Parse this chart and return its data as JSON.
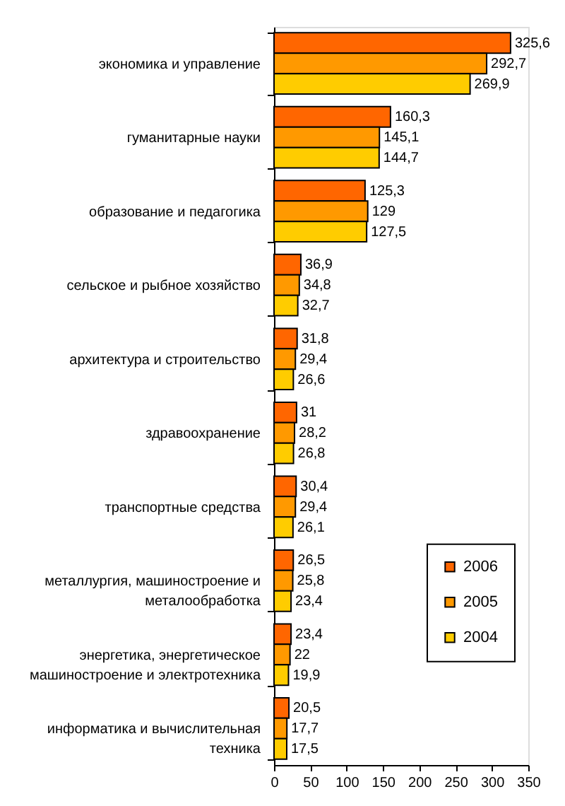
{
  "chart_data": {
    "type": "bar",
    "orientation": "horizontal",
    "categories": [
      "экономика и управление",
      "гуманитарные науки",
      "образование и педагогика",
      "сельское и рыбное хозяйство",
      "архитектура и строительство",
      "здравоохранение",
      "транспортные средства",
      "металлургия, машиностроение и\nметалообработка",
      "энергетика, энергетическое\nмашиностроение и электротехника",
      "информатика и вычислительная\nтехника"
    ],
    "series": [
      {
        "name": "2006",
        "color": "#ff6600",
        "values": [
          325.6,
          160.3,
          125.3,
          36.9,
          31.8,
          31,
          30.4,
          26.5,
          23.4,
          20.5
        ],
        "value_labels": [
          "325,6",
          "160,3",
          "125,3",
          "36,9",
          "31,8",
          "31",
          "30,4",
          "26,5",
          "23,4",
          "20,5"
        ]
      },
      {
        "name": "2005",
        "color": "#ff9900",
        "values": [
          292.7,
          145.1,
          129,
          34.8,
          29.4,
          28.2,
          29.4,
          25.8,
          22,
          17.7
        ],
        "value_labels": [
          "292,7",
          "145,1",
          "129",
          "34,8",
          "29,4",
          "28,2",
          "29,4",
          "25,8",
          "22",
          "17,7"
        ]
      },
      {
        "name": "2004",
        "color": "#ffcc00",
        "values": [
          269.9,
          144.7,
          127.5,
          32.7,
          26.6,
          26.8,
          26.1,
          23.4,
          19.9,
          17.5
        ],
        "value_labels": [
          "269,9",
          "144,7",
          "127,5",
          "32,7",
          "26,6",
          "26,8",
          "26,1",
          "23,4",
          "19,9",
          "17,5"
        ]
      }
    ],
    "xlim": [
      0,
      350
    ],
    "xticks": [
      0,
      50,
      100,
      150,
      200,
      250,
      300,
      350
    ],
    "legend": "bottom right"
  }
}
